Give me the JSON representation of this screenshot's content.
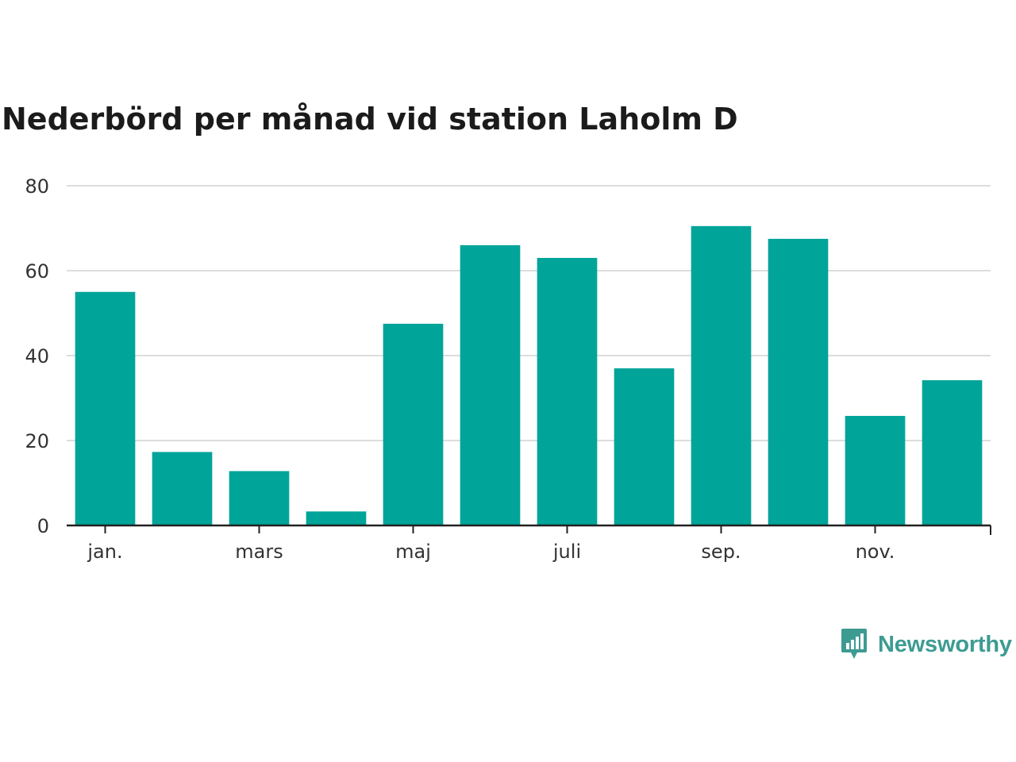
{
  "chart_data": {
    "type": "bar",
    "title": "Nederbörd per månad vid station Laholm D",
    "categories": [
      "jan.",
      "feb.",
      "mars",
      "april",
      "maj",
      "juni",
      "juli",
      "aug.",
      "sep.",
      "okt.",
      "nov.",
      "dec."
    ],
    "tick_labels": [
      "jan.",
      "mars",
      "maj",
      "juli",
      "sep.",
      "nov."
    ],
    "values": [
      55,
      17.3,
      12.8,
      3.3,
      47.5,
      66,
      63,
      37,
      70.5,
      67.5,
      25.8,
      34.2
    ],
    "yticks": [
      0,
      20,
      40,
      60,
      80
    ],
    "ylim": [
      0,
      80
    ],
    "xlabel": "",
    "ylabel": "",
    "grid": true,
    "bar_color": "#00a499"
  },
  "brand": {
    "name": "Newsworthy",
    "color": "#3d9b92"
  }
}
